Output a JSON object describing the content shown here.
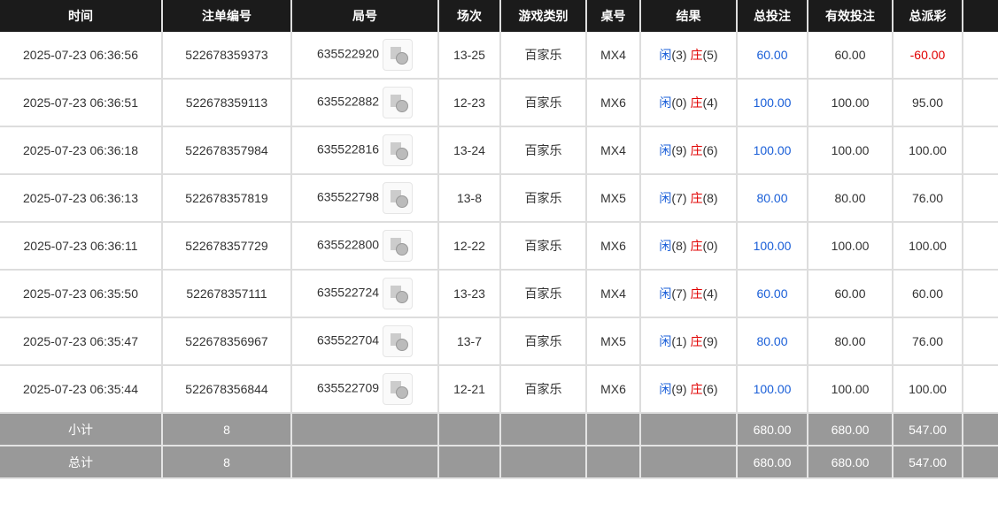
{
  "headers": [
    "时间",
    "注单编号",
    "局号",
    "场次",
    "游戏类别",
    "桌号",
    "结果",
    "总投注",
    "有效投注",
    "总派彩",
    ""
  ],
  "result_labels": {
    "player": "闲",
    "banker": "庄"
  },
  "colors": {
    "player": "#1a5fd8",
    "banker": "#e00000",
    "bet": "#1a5fd8",
    "negative": "#e00000"
  },
  "rows": [
    {
      "time": "2025-07-23 06:36:56",
      "order": "522678359373",
      "round": "635522920",
      "session": "13-25",
      "game": "百家乐",
      "table": "MX4",
      "player": "(3)",
      "banker": "(5)",
      "bet": "60.00",
      "valid": "60.00",
      "payout": "-60.00",
      "negative": true
    },
    {
      "time": "2025-07-23 06:36:51",
      "order": "522678359113",
      "round": "635522882",
      "session": "12-23",
      "game": "百家乐",
      "table": "MX6",
      "player": "(0)",
      "banker": "(4)",
      "bet": "100.00",
      "valid": "100.00",
      "payout": "95.00"
    },
    {
      "time": "2025-07-23 06:36:18",
      "order": "522678357984",
      "round": "635522816",
      "session": "13-24",
      "game": "百家乐",
      "table": "MX4",
      "player": "(9)",
      "banker": "(6)",
      "bet": "100.00",
      "valid": "100.00",
      "payout": "100.00"
    },
    {
      "time": "2025-07-23 06:36:13",
      "order": "522678357819",
      "round": "635522798",
      "session": "13-8",
      "game": "百家乐",
      "table": "MX5",
      "player": "(7)",
      "banker": "(8)",
      "bet": "80.00",
      "valid": "80.00",
      "payout": "76.00"
    },
    {
      "time": "2025-07-23 06:36:11",
      "order": "522678357729",
      "round": "635522800",
      "session": "12-22",
      "game": "百家乐",
      "table": "MX6",
      "player": "(8)",
      "banker": "(0)",
      "bet": "100.00",
      "valid": "100.00",
      "payout": "100.00"
    },
    {
      "time": "2025-07-23 06:35:50",
      "order": "522678357111",
      "round": "635522724",
      "session": "13-23",
      "game": "百家乐",
      "table": "MX4",
      "player": "(7)",
      "banker": "(4)",
      "bet": "60.00",
      "valid": "60.00",
      "payout": "60.00"
    },
    {
      "time": "2025-07-23 06:35:47",
      "order": "522678356967",
      "round": "635522704",
      "session": "13-7",
      "game": "百家乐",
      "table": "MX5",
      "player": "(1)",
      "banker": "(9)",
      "bet": "80.00",
      "valid": "80.00",
      "payout": "76.00"
    },
    {
      "time": "2025-07-23 06:35:44",
      "order": "522678356844",
      "round": "635522709",
      "session": "12-21",
      "game": "百家乐",
      "table": "MX6",
      "player": "(9)",
      "banker": "(6)",
      "bet": "100.00",
      "valid": "100.00",
      "payout": "100.00"
    }
  ],
  "subtotal": {
    "label": "小计",
    "count": "8",
    "bet": "680.00",
    "valid": "680.00",
    "payout": "547.00"
  },
  "total": {
    "label": "总计",
    "count": "8",
    "bet": "680.00",
    "valid": "680.00",
    "payout": "547.00"
  }
}
